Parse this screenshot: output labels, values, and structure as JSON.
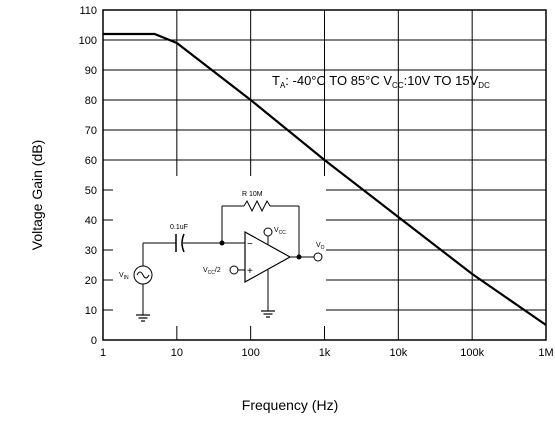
{
  "chart_data": {
    "type": "line",
    "x_scale": "log",
    "xlim": [
      1,
      1000000
    ],
    "ylim": [
      0,
      110
    ],
    "grid": true,
    "xlabel": "Frequency (Hz)",
    "ylabel": "Voltage Gain (dB)",
    "x_tick_labels": [
      "1",
      "10",
      "100",
      "1k",
      "10k",
      "100k",
      "1M"
    ],
    "y_tick_labels": [
      "0",
      "10",
      "20",
      "30",
      "40",
      "50",
      "60",
      "70",
      "80",
      "90",
      "100",
      "110"
    ],
    "x_tick_values": [
      1,
      10,
      100,
      1000,
      10000,
      100000,
      1000000
    ],
    "y_tick_values": [
      0,
      10,
      20,
      30,
      40,
      50,
      60,
      70,
      80,
      90,
      100,
      110
    ],
    "series": [
      {
        "x": [
          1,
          5,
          10,
          100,
          1000,
          10000,
          100000,
          1000000
        ],
        "y": [
          102,
          102,
          99,
          80,
          60,
          41,
          22,
          5
        ]
      }
    ],
    "annotation": {
      "t_symbol": "T",
      "t_sub": "A",
      "t_text": ": -40°C TO 85°C V",
      "v_sub": "CC",
      "v_text": ":10V TO 15V",
      "dc_sub": "DC"
    },
    "schematic": {
      "resistor_label": "R 10M",
      "cap_label": "0.1uF",
      "vcc_label": "V",
      "vcc_sub": "CC",
      "vo_label": "V",
      "vo_sub": "O",
      "vin_label": "V",
      "vin_sub": "IN",
      "vcc2_label": "V",
      "vcc2_sub": "CC",
      "vcc2_suffix": "/2",
      "minus": "−",
      "plus": "+"
    }
  }
}
